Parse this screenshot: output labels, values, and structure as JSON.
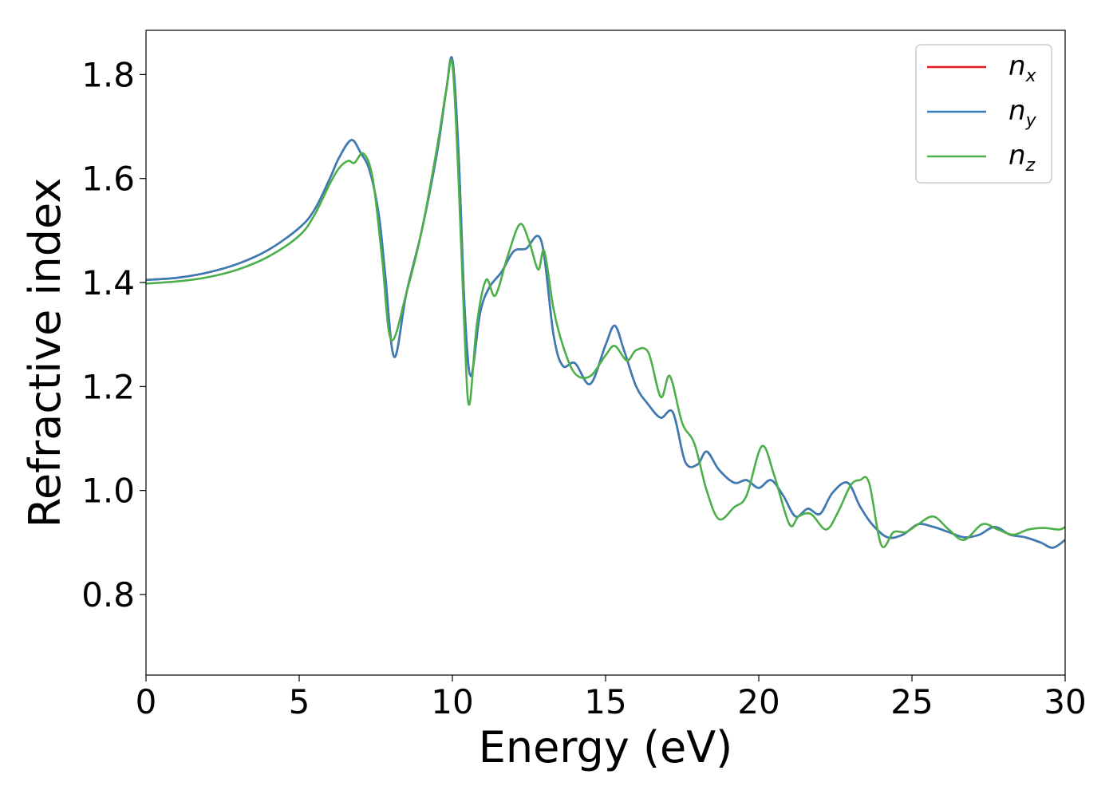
{
  "chart_data": {
    "type": "line",
    "title": "",
    "xlabel": "Energy (eV)",
    "ylabel": "Refractive index",
    "xlim": [
      0,
      30
    ],
    "ylim": [
      0.645,
      1.885
    ],
    "xticks": [
      0,
      5,
      10,
      15,
      20,
      25,
      30
    ],
    "xtick_labels": [
      "0",
      "5",
      "10",
      "15",
      "20",
      "25",
      "30"
    ],
    "yticks": [
      0.8,
      1.0,
      1.2,
      1.4,
      1.6,
      1.8
    ],
    "ytick_labels": [
      "0.8",
      "1.0",
      "1.2",
      "1.4",
      "1.6",
      "1.8"
    ],
    "grid": false,
    "legend_position": "top-right",
    "series": [
      {
        "name": "n_x",
        "name_base": "n",
        "name_sub": "x",
        "color": "#e41a1c",
        "x": [
          0,
          1,
          2,
          3,
          4,
          5,
          5.5,
          6,
          6.3,
          6.7,
          7,
          7.3,
          7.6,
          7.8,
          8.1,
          8.5,
          9,
          9.5,
          9.8,
          10,
          10.2,
          10.4,
          10.6,
          10.9,
          11.2,
          11.6,
          12,
          12.4,
          12.9,
          13.3,
          13.6,
          14,
          14.5,
          15,
          15.3,
          15.6,
          16,
          16.4,
          16.8,
          17.2,
          17.6,
          18,
          18.3,
          18.7,
          19.2,
          19.6,
          20,
          20.4,
          20.8,
          21.2,
          21.6,
          22,
          22.4,
          22.9,
          23.3,
          23.7,
          24.2,
          24.7,
          25.2,
          25.7,
          26.2,
          26.7,
          27.2,
          27.7,
          28.2,
          28.7,
          29.2,
          29.6,
          30
        ],
        "y": [
          1.405,
          1.409,
          1.419,
          1.436,
          1.463,
          1.505,
          1.54,
          1.6,
          1.64,
          1.674,
          1.65,
          1.615,
          1.53,
          1.42,
          1.257,
          1.38,
          1.5,
          1.65,
          1.77,
          1.829,
          1.65,
          1.35,
          1.22,
          1.34,
          1.39,
          1.42,
          1.46,
          1.465,
          1.48,
          1.3,
          1.24,
          1.245,
          1.205,
          1.28,
          1.317,
          1.27,
          1.2,
          1.165,
          1.14,
          1.15,
          1.055,
          1.05,
          1.075,
          1.04,
          1.015,
          1.02,
          1.005,
          1.02,
          0.99,
          0.95,
          0.965,
          0.955,
          0.995,
          1.015,
          0.97,
          0.935,
          0.91,
          0.915,
          0.935,
          0.93,
          0.92,
          0.91,
          0.915,
          0.93,
          0.915,
          0.91,
          0.9,
          0.89,
          0.905
        ]
      },
      {
        "name": "n_y",
        "name_base": "n",
        "name_sub": "y",
        "color": "#377eb8",
        "x": [
          0,
          1,
          2,
          3,
          4,
          5,
          5.5,
          6,
          6.3,
          6.7,
          7,
          7.3,
          7.6,
          7.8,
          8.1,
          8.5,
          9,
          9.5,
          9.8,
          10,
          10.2,
          10.4,
          10.6,
          10.9,
          11.2,
          11.6,
          12,
          12.4,
          12.9,
          13.3,
          13.6,
          14,
          14.5,
          15,
          15.3,
          15.6,
          16,
          16.4,
          16.8,
          17.2,
          17.6,
          18,
          18.3,
          18.7,
          19.2,
          19.6,
          20,
          20.4,
          20.8,
          21.2,
          21.6,
          22,
          22.4,
          22.9,
          23.3,
          23.7,
          24.2,
          24.7,
          25.2,
          25.7,
          26.2,
          26.7,
          27.2,
          27.7,
          28.2,
          28.7,
          29.2,
          29.6,
          30
        ],
        "y": [
          1.405,
          1.409,
          1.419,
          1.436,
          1.463,
          1.505,
          1.54,
          1.6,
          1.64,
          1.674,
          1.65,
          1.615,
          1.53,
          1.42,
          1.257,
          1.38,
          1.5,
          1.65,
          1.77,
          1.829,
          1.65,
          1.35,
          1.22,
          1.34,
          1.39,
          1.42,
          1.46,
          1.465,
          1.48,
          1.3,
          1.24,
          1.245,
          1.205,
          1.28,
          1.317,
          1.27,
          1.2,
          1.165,
          1.14,
          1.15,
          1.055,
          1.05,
          1.075,
          1.04,
          1.015,
          1.02,
          1.005,
          1.02,
          0.99,
          0.95,
          0.965,
          0.955,
          0.995,
          1.015,
          0.97,
          0.935,
          0.91,
          0.915,
          0.935,
          0.93,
          0.92,
          0.91,
          0.915,
          0.93,
          0.915,
          0.91,
          0.9,
          0.89,
          0.905
        ]
      },
      {
        "name": "n_z",
        "name_base": "n",
        "name_sub": "z",
        "color": "#4daf4a",
        "x": [
          0,
          1,
          2,
          3,
          4,
          5,
          5.5,
          6,
          6.3,
          6.6,
          6.8,
          7.1,
          7.4,
          7.7,
          8.0,
          8.5,
          9.0,
          9.5,
          9.8,
          10.0,
          10.2,
          10.4,
          10.55,
          10.8,
          11.1,
          11.4,
          11.8,
          12.2,
          12.5,
          12.8,
          13.0,
          13.3,
          13.6,
          14.0,
          14.5,
          15.0,
          15.3,
          15.7,
          16.0,
          16.4,
          16.8,
          17.1,
          17.5,
          17.9,
          18.3,
          18.7,
          19.2,
          19.6,
          20.1,
          20.5,
          21.0,
          21.3,
          21.7,
          22.2,
          22.6,
          23.0,
          23.3,
          23.6,
          24.0,
          24.4,
          24.8,
          25.2,
          25.7,
          26.2,
          26.7,
          27.3,
          27.8,
          28.3,
          28.8,
          29.3,
          29.8,
          30.0
        ],
        "y": [
          1.398,
          1.402,
          1.41,
          1.425,
          1.45,
          1.49,
          1.53,
          1.59,
          1.62,
          1.634,
          1.63,
          1.648,
          1.6,
          1.45,
          1.29,
          1.38,
          1.5,
          1.66,
          1.77,
          1.82,
          1.6,
          1.3,
          1.165,
          1.32,
          1.405,
          1.375,
          1.45,
          1.512,
          1.48,
          1.425,
          1.46,
          1.35,
          1.28,
          1.225,
          1.22,
          1.26,
          1.278,
          1.25,
          1.27,
          1.265,
          1.18,
          1.22,
          1.13,
          1.09,
          1.0,
          0.945,
          0.968,
          0.99,
          1.085,
          1.03,
          0.935,
          0.95,
          0.955,
          0.925,
          0.96,
          1.01,
          1.02,
          1.015,
          0.895,
          0.92,
          0.92,
          0.935,
          0.95,
          0.925,
          0.905,
          0.935,
          0.925,
          0.915,
          0.925,
          0.928,
          0.925,
          0.93
        ]
      }
    ]
  }
}
